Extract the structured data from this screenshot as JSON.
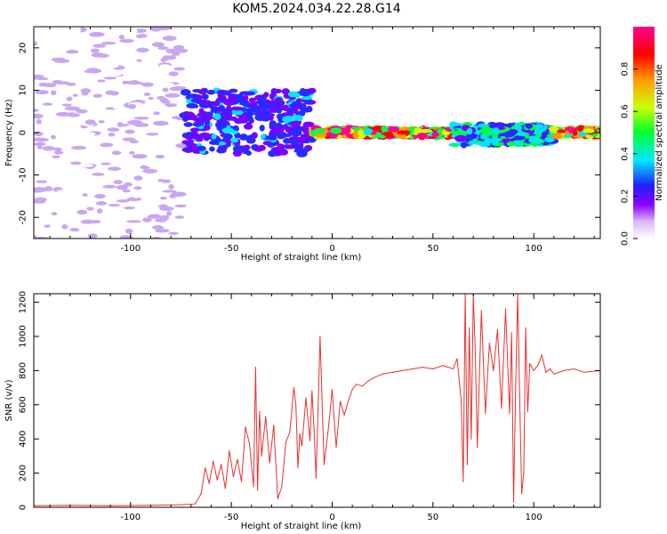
{
  "title": "KOM5.2024.034.22.28.G14",
  "chart_data": [
    {
      "type": "heatmap",
      "xlabel": "Height of straight line (km)",
      "ylabel": "Frequency (Hz)",
      "xlim": [
        -148,
        133
      ],
      "ylim": [
        -25,
        25
      ],
      "xticks": [
        -100,
        -50,
        0,
        50,
        100
      ],
      "yticks": [
        -20,
        -10,
        0,
        10,
        20
      ],
      "colorbar": {
        "label": "Normalized spectral amplitude",
        "range": [
          0,
          1
        ],
        "ticks": [
          "0.0",
          "0.2",
          "0.4",
          "0.6",
          "0.8"
        ],
        "colors": [
          "#ffffff",
          "#c9a6f2",
          "#7a00ff",
          "#2a2aff",
          "#00e5ff",
          "#00ff40",
          "#ccff00",
          "#ff9900",
          "#ff0000",
          "#ff0090"
        ]
      },
      "description_of_pattern": [
        {
          "x_range": [
            -148,
            -73
          ],
          "freq_range": [
            -25,
            25
          ],
          "amplitude": 0.08
        },
        {
          "x_range": [
            -73,
            -10
          ],
          "freq_range": [
            -5,
            10
          ],
          "amplitude": 0.35
        },
        {
          "x_range": [
            -10,
            60
          ],
          "freq_range": [
            -1,
            1
          ],
          "amplitude": 0.9
        },
        {
          "x_range": [
            60,
            110
          ],
          "freq_range": [
            -3,
            2
          ],
          "amplitude": 0.5
        },
        {
          "x_range": [
            110,
            133
          ],
          "freq_range": [
            -1,
            1
          ],
          "amplitude": 0.85
        }
      ]
    },
    {
      "type": "line",
      "xlabel": "Height of straight line (km)",
      "ylabel": "SNR (v/v)",
      "xlim": [
        -148,
        133
      ],
      "ylim": [
        0,
        1250
      ],
      "xticks": [
        -100,
        -50,
        0,
        50,
        100
      ],
      "yticks": [
        0,
        200,
        400,
        600,
        800,
        1000,
        1200
      ],
      "color": "#e83030",
      "x": [
        -148,
        -130,
        -110,
        -90,
        -75,
        -68,
        -65,
        -63,
        -61,
        -59,
        -57,
        -55,
        -53,
        -51,
        -49,
        -47,
        -45,
        -43,
        -41,
        -39,
        -38,
        -37,
        -36,
        -35,
        -33,
        -31,
        -29,
        -27,
        -25,
        -23,
        -21,
        -19,
        -18,
        -17,
        -16,
        -15,
        -13,
        -11,
        -10,
        -9,
        -8,
        -7,
        -6,
        -4,
        -2,
        0,
        2,
        4,
        6,
        8,
        10,
        12,
        15,
        18,
        21,
        25,
        30,
        35,
        40,
        45,
        50,
        55,
        60,
        62,
        64,
        65,
        66,
        67,
        68,
        69,
        70,
        71,
        72,
        74,
        76,
        78,
        80,
        82,
        84,
        86,
        88,
        89,
        90,
        91,
        92,
        93,
        94,
        95,
        96,
        97,
        98,
        100,
        102,
        104,
        106,
        108,
        110,
        115,
        120,
        125,
        133
      ],
      "y": [
        10,
        12,
        10,
        12,
        15,
        20,
        80,
        230,
        140,
        270,
        160,
        250,
        110,
        330,
        180,
        280,
        150,
        470,
        370,
        120,
        820,
        100,
        560,
        300,
        530,
        260,
        480,
        50,
        120,
        380,
        440,
        700,
        600,
        230,
        430,
        360,
        640,
        390,
        680,
        460,
        170,
        570,
        1000,
        250,
        450,
        690,
        350,
        620,
        540,
        620,
        690,
        720,
        710,
        740,
        760,
        780,
        790,
        800,
        810,
        820,
        810,
        830,
        810,
        870,
        620,
        150,
        1250,
        250,
        1050,
        400,
        1250,
        900,
        350,
        1150,
        550,
        960,
        800,
        1040,
        580,
        1160,
        550,
        1020,
        30,
        700,
        1250,
        650,
        80,
        200,
        1050,
        560,
        840,
        800,
        830,
        890,
        790,
        810,
        780,
        800,
        810,
        790,
        800
      ]
    }
  ]
}
